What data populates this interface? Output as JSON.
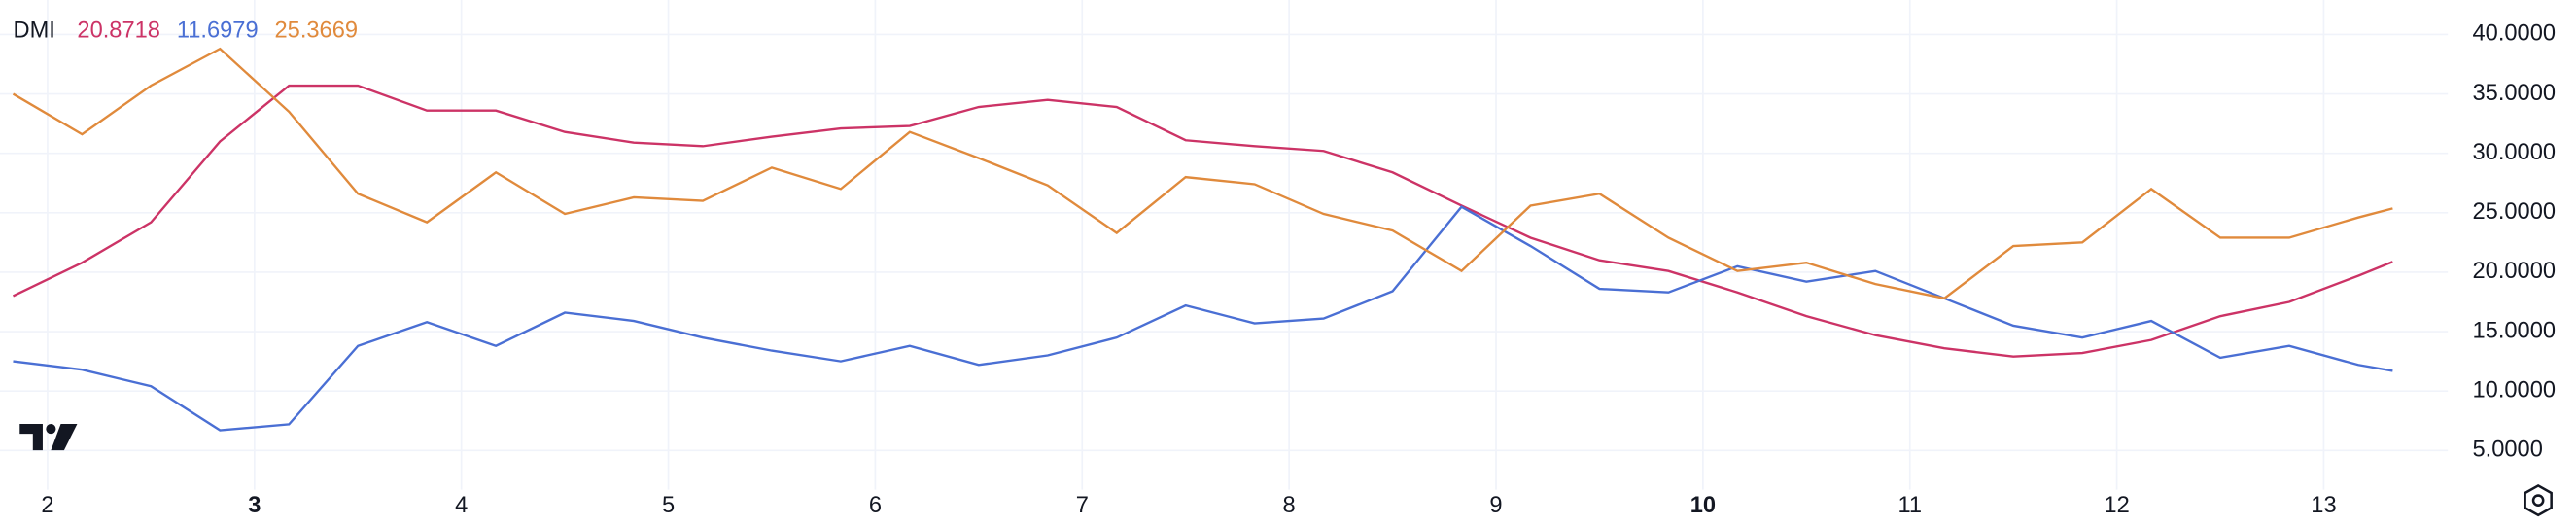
{
  "chart_data": {
    "type": "line",
    "title": "DMI",
    "x": [
      1.8333,
      2.1667,
      2.5,
      2.8333,
      3.1667,
      3.5,
      3.8333,
      4.1667,
      4.5,
      4.8333,
      5.1667,
      5.5,
      5.8333,
      6.1667,
      6.5,
      6.8333,
      7.1667,
      7.5,
      7.8333,
      8.1667,
      8.5,
      8.8333,
      9.1667,
      9.5,
      9.8333,
      10.1667,
      10.5,
      10.8333,
      11.1667,
      11.5,
      11.8333,
      12.1667,
      12.5,
      12.8333,
      13.1667,
      13.3333
    ],
    "series": [
      {
        "color": "#cc3366",
        "values": [
          18,
          20.8,
          24.2,
          31,
          35.7,
          35.7,
          33.6,
          33.6,
          31.8,
          30.9,
          30.6,
          31.4,
          32.1,
          32.3,
          33.9,
          34.5,
          33.9,
          31.1,
          30.6,
          30.2,
          28.4,
          25.6,
          22.9,
          21,
          20.1,
          18.3,
          16.3,
          14.7,
          13.6,
          12.9,
          13.2,
          14.3,
          16.3,
          17.5,
          19.7,
          20.8718
        ]
      },
      {
        "color": "#4a6fd4",
        "values": [
          12.5,
          11.8,
          10.4,
          6.7,
          7.2,
          13.8,
          15.8,
          13.8,
          16.6,
          15.9,
          14.5,
          13.4,
          12.5,
          13.8,
          12.2,
          13,
          14.5,
          17.2,
          15.7,
          16.1,
          18.4,
          25.5,
          22.2,
          18.6,
          18.3,
          20.5,
          19.2,
          20.1,
          17.8,
          15.5,
          14.5,
          15.9,
          12.8,
          13.8,
          12.2,
          11.6979
        ]
      },
      {
        "color": "#e08a3c",
        "values": [
          35,
          31.6,
          35.7,
          38.8,
          33.5,
          26.6,
          24.2,
          28.4,
          24.9,
          26.3,
          26,
          28.8,
          27,
          31.8,
          29.6,
          27.3,
          23.3,
          28,
          27.4,
          24.9,
          23.5,
          20.1,
          25.6,
          26.6,
          22.9,
          20.1,
          20.8,
          19,
          17.8,
          22.2,
          22.5,
          27,
          22.9,
          22.9,
          24.6,
          25.3669
        ]
      }
    ],
    "xlim": [
      1.77,
      13.6
    ],
    "xticks": [
      2,
      3,
      4,
      5,
      6,
      7,
      8,
      9,
      10,
      11,
      12,
      13
    ],
    "bold_xticks": [
      3,
      10
    ],
    "ylim": [
      1.7,
      42.9
    ],
    "yticks": [
      {
        "value": 5,
        "label": "5.0000"
      },
      {
        "value": 10,
        "label": "10.0000"
      },
      {
        "value": 15,
        "label": "15.0000"
      },
      {
        "value": 20,
        "label": "20.0000"
      },
      {
        "value": 25,
        "label": "25.0000"
      },
      {
        "value": 30,
        "label": "30.0000"
      },
      {
        "value": 35,
        "label": "35.0000"
      },
      {
        "value": 40,
        "label": "40.0000"
      }
    ],
    "grid": true
  }
}
